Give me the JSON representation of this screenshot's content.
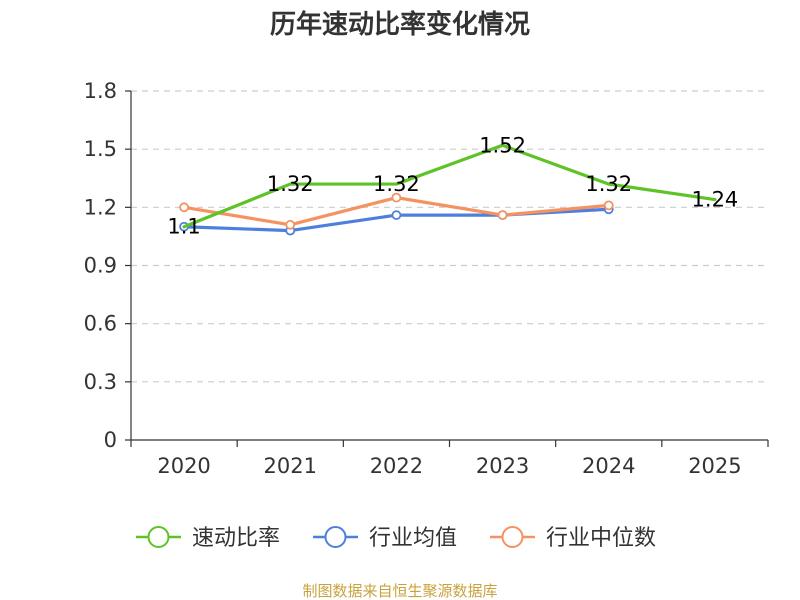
{
  "chart_data": {
    "type": "line",
    "title": "历年速动比率变化情况",
    "categories": [
      "2020",
      "2021",
      "2022",
      "2023",
      "2024",
      "2025"
    ],
    "ylim": [
      0,
      1.8
    ],
    "yticks": [
      "0",
      "0.3",
      "0.6",
      "0.9",
      "1.2",
      "1.5",
      "1.8"
    ],
    "grid": true,
    "legend_position": "bottom",
    "series": [
      {
        "name": "速动比率",
        "color": "#5dc327",
        "values": [
          1.1,
          1.32,
          1.32,
          1.52,
          1.32,
          1.24
        ],
        "labels": [
          "1.1",
          "1.32",
          "1.32",
          "1.52",
          "1.32",
          "1.24"
        ]
      },
      {
        "name": "行业均值",
        "color": "#4f7fdd",
        "values": [
          1.1,
          1.08,
          1.16,
          1.16,
          1.19,
          null
        ]
      },
      {
        "name": "行业中位数",
        "color": "#f49361",
        "values": [
          1.2,
          1.11,
          1.25,
          1.16,
          1.21,
          null
        ]
      }
    ]
  },
  "source": "制图数据来自恒生聚源数据库"
}
